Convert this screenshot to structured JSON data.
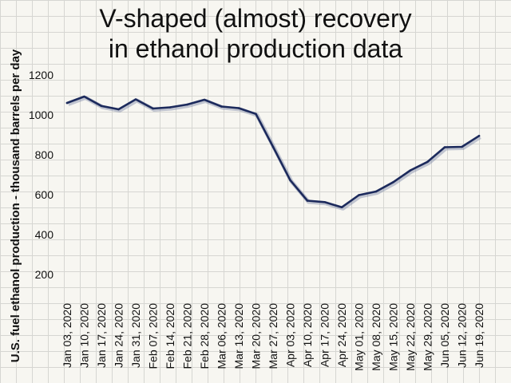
{
  "chart_data": {
    "type": "line",
    "title_line1": "V-shaped (almost) recovery",
    "title_line2": "in ethanol production data",
    "xlabel": "",
    "ylabel": "U.S. fuel ethanol production - thousand barrels per day",
    "ylim": [
      100,
      1300
    ],
    "yticks": [
      200,
      400,
      600,
      800,
      1000,
      1200
    ],
    "grid": true,
    "line_color": "#1c2a5c",
    "categories": [
      "Jan 03, 2020",
      "Jan 10, 2020",
      "Jan 17, 2020",
      "Jan 24, 2020",
      "Jan 31, 2020",
      "Feb 07, 2020",
      "Feb 14, 2020",
      "Feb 21, 2020",
      "Feb 28, 2020",
      "Mar 06, 2020",
      "Mar 13, 2020",
      "Mar 20, 2020",
      "Mar 27, 2020",
      "Apr 03, 2020",
      "Apr 10, 2020",
      "Apr 17, 2020",
      "Apr 24, 2020",
      "May 01, 2020",
      "May 08, 2020",
      "May 15, 2020",
      "May 22, 2020",
      "May 29, 2020",
      "Jun 05, 2020",
      "Jun 12, 2020",
      "Jun 19, 2020"
    ],
    "values": [
      1060,
      1092,
      1045,
      1028,
      1078,
      1032,
      1038,
      1052,
      1076,
      1042,
      1034,
      1005,
      840,
      673,
      570,
      563,
      537,
      598,
      616,
      663,
      722,
      765,
      838,
      840,
      895
    ]
  }
}
